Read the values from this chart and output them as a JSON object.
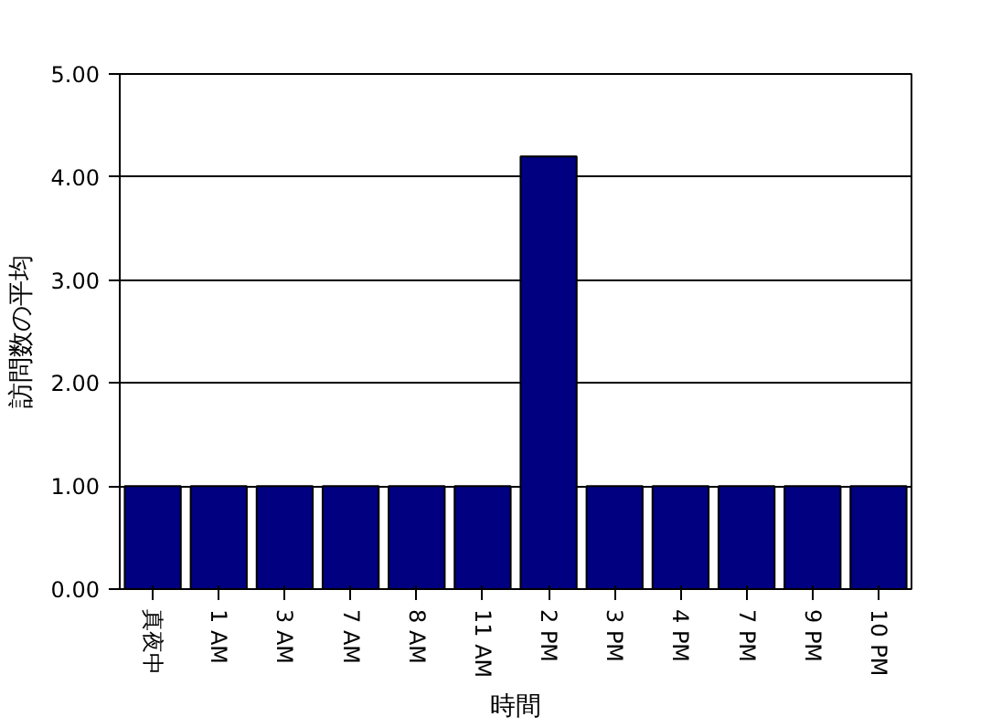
{
  "chart_data": {
    "type": "bar",
    "xlabel": "時間",
    "ylabel": "訪問数の平均",
    "categories": [
      "真夜中",
      "1 AM",
      "3 AM",
      "7 AM",
      "8 AM",
      "11 AM",
      "2 PM",
      "3 PM",
      "4 PM",
      "7 PM",
      "9 PM",
      "10 PM"
    ],
    "values": [
      1,
      1,
      1,
      1,
      1,
      1,
      4.2,
      1,
      1,
      1,
      1,
      1
    ],
    "color": "#000080",
    "ylim": [
      0,
      5
    ],
    "yticks": [
      {
        "value": 0,
        "label": "0.00"
      },
      {
        "value": 1,
        "label": "1.00"
      },
      {
        "value": 2,
        "label": "2.00"
      },
      {
        "value": 3,
        "label": "3.00"
      },
      {
        "value": 4,
        "label": "4.00"
      },
      {
        "value": 5,
        "label": "5.00"
      }
    ],
    "grid": "y"
  }
}
